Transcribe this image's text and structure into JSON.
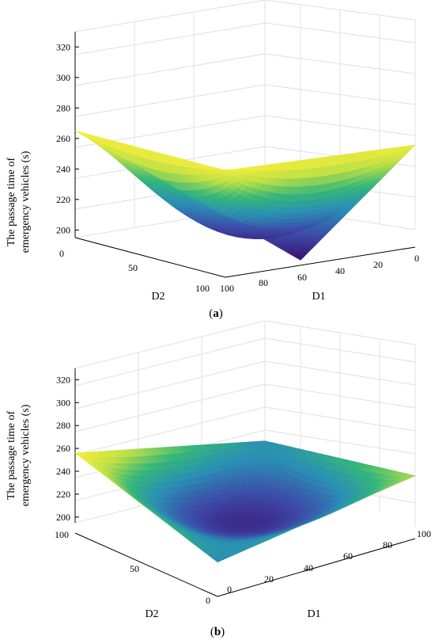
{
  "chart_data": [
    {
      "type": "surface",
      "panel_label": "(a)",
      "panel_letter": "a",
      "zlabel_line1": "The passage time of",
      "zlabel_line2": "emergency vehicles (s)",
      "xlabel": "D1",
      "ylabel": "D2",
      "x_ticks": [
        "100",
        "80",
        "60",
        "40",
        "20",
        "0"
      ],
      "y_ticks": [
        "0",
        "50",
        "100"
      ],
      "z_ticks": [
        "200",
        "220",
        "240",
        "260",
        "280",
        "300",
        "320"
      ],
      "xlim": [
        0,
        100
      ],
      "ylim": [
        0,
        100
      ],
      "zlim": [
        195,
        330
      ],
      "z_corners": {
        "D1_0_D2_0": 262,
        "D1_100_D2_0": 265,
        "D1_0_D2_100": 200,
        "D1_100_D2_100": 265
      },
      "z_min": 200,
      "colormap": [
        "#3b0f70",
        "#3d4ba8",
        "#2a8fb5",
        "#35b779",
        "#bfe045",
        "#f7ee3b"
      ],
      "grid": true
    },
    {
      "type": "surface",
      "panel_label": "(b)",
      "panel_letter": "b",
      "zlabel_line1": "The passage time of",
      "zlabel_line2": "emergency vehicles (s)",
      "xlabel": "D1",
      "ylabel": "D2",
      "x_ticks": [
        "0",
        "20",
        "40",
        "60",
        "80",
        "100"
      ],
      "y_ticks": [
        "0",
        "50",
        "100"
      ],
      "z_ticks": [
        "200",
        "220",
        "240",
        "260",
        "280",
        "300",
        "320"
      ],
      "xlim": [
        0,
        100
      ],
      "ylim": [
        0,
        100
      ],
      "zlim": [
        195,
        330
      ],
      "z_corners": {
        "D1_0_D2_0": 225,
        "D1_100_D2_0": 250,
        "D1_0_D2_100": 265,
        "D1_100_D2_100": 225
      },
      "z_min": 200,
      "colormap": [
        "#3b0f70",
        "#3d4ba8",
        "#2a8fb5",
        "#35b779",
        "#bfe045",
        "#f7ee3b"
      ],
      "grid": true
    }
  ]
}
